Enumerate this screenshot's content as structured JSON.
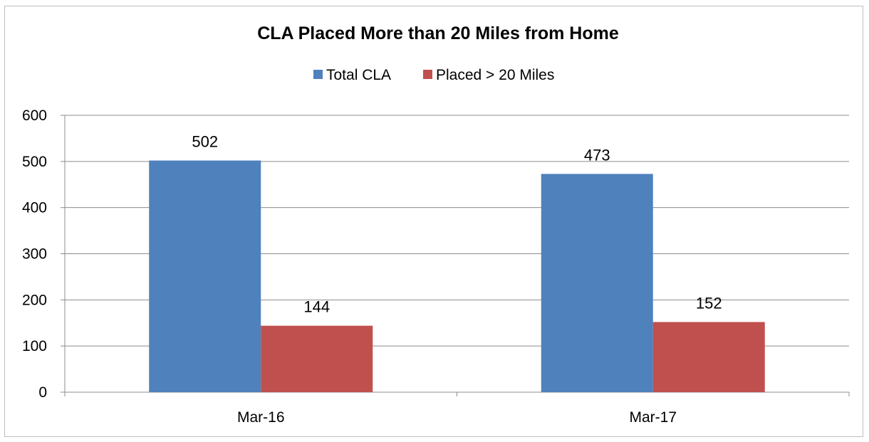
{
  "chart_data": {
    "type": "bar",
    "title": "CLA Placed More than 20 Miles from Home",
    "categories": [
      "Mar-16",
      "Mar-17"
    ],
    "series": [
      {
        "name": "Total CLA",
        "values": [
          502,
          473
        ],
        "color": "#4f81bd"
      },
      {
        "name": "Placed > 20 Miles",
        "values": [
          144,
          152
        ],
        "color": "#c0504d"
      }
    ],
    "ylim": [
      0,
      600
    ],
    "yticks": [
      0,
      100,
      200,
      300,
      400,
      500,
      600
    ],
    "grid": true,
    "legend": "top"
  }
}
